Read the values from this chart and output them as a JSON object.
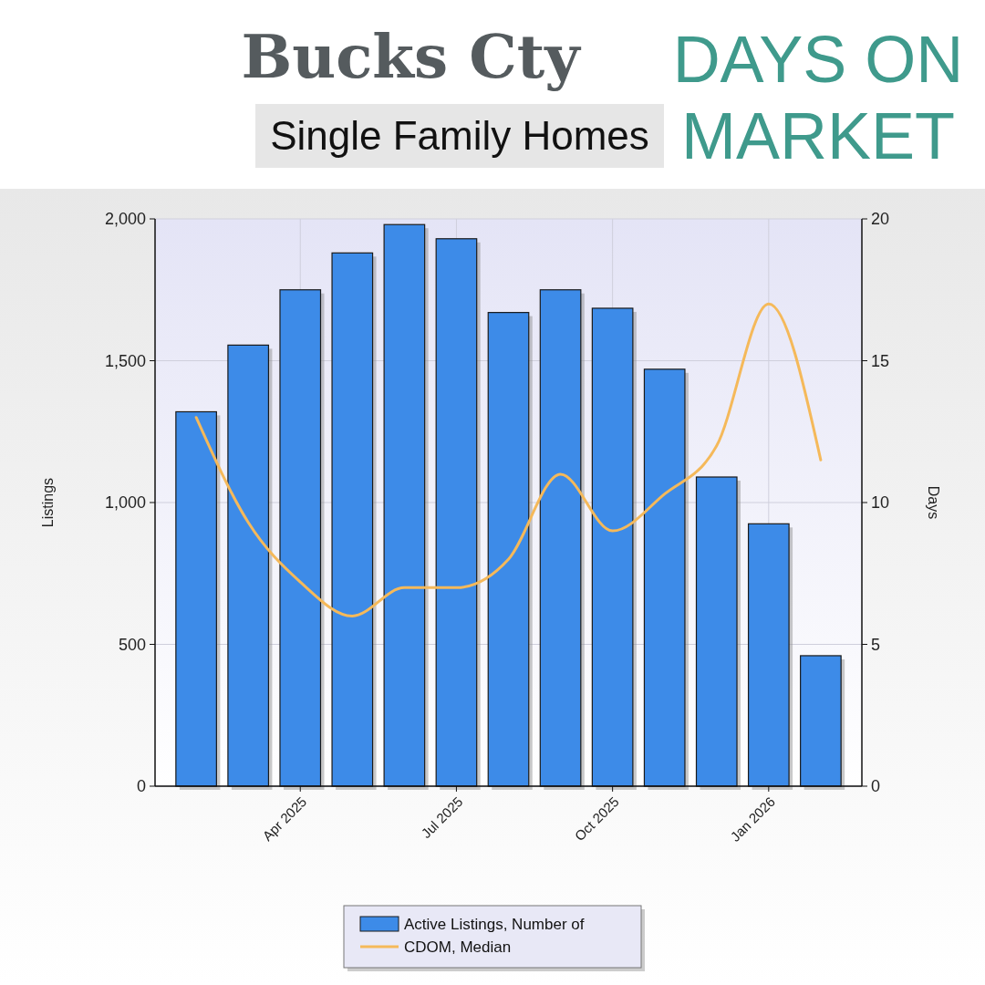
{
  "chart_data": {
    "type": "bar",
    "title": "Bucks Cty",
    "subtitle": "Single Family Homes",
    "annotations": [
      "DAYS ON MARKET"
    ],
    "categories": [
      null,
      null,
      "Apr 2025",
      null,
      null,
      "Jul 2025",
      null,
      null,
      "Oct 2025",
      null,
      null,
      "Jan 2026",
      null
    ],
    "series": [
      {
        "name": "Active Listings, Number of",
        "color": "#3d8be8",
        "values": [
          1320,
          1555,
          1750,
          1880,
          1980,
          1930,
          1670,
          1750,
          1685,
          1470,
          1090,
          925,
          460
        ]
      },
      {
        "name": "CDOM, Median",
        "type": "line",
        "axis": "y2",
        "color": "#f5b95a",
        "values": [
          13,
          9.3,
          7.2,
          6,
          7,
          7,
          8,
          11,
          9,
          10.3,
          12,
          17,
          11.5
        ]
      }
    ],
    "ylabel": "Listings",
    "y2label": "Days",
    "ylim": [
      0,
      2000
    ],
    "yticks": [
      0,
      500,
      {
        "value": 1000,
        "label": "1,000"
      },
      {
        "value": 1500,
        "label": "1,500"
      },
      {
        "value": 2000,
        "label": "2,000"
      }
    ],
    "y2lim": [
      0,
      20
    ],
    "y2ticks": [
      0,
      5,
      10,
      15,
      20
    ],
    "grid": true,
    "legend": "bottom",
    "marker": "none",
    "line_style": "solid"
  }
}
